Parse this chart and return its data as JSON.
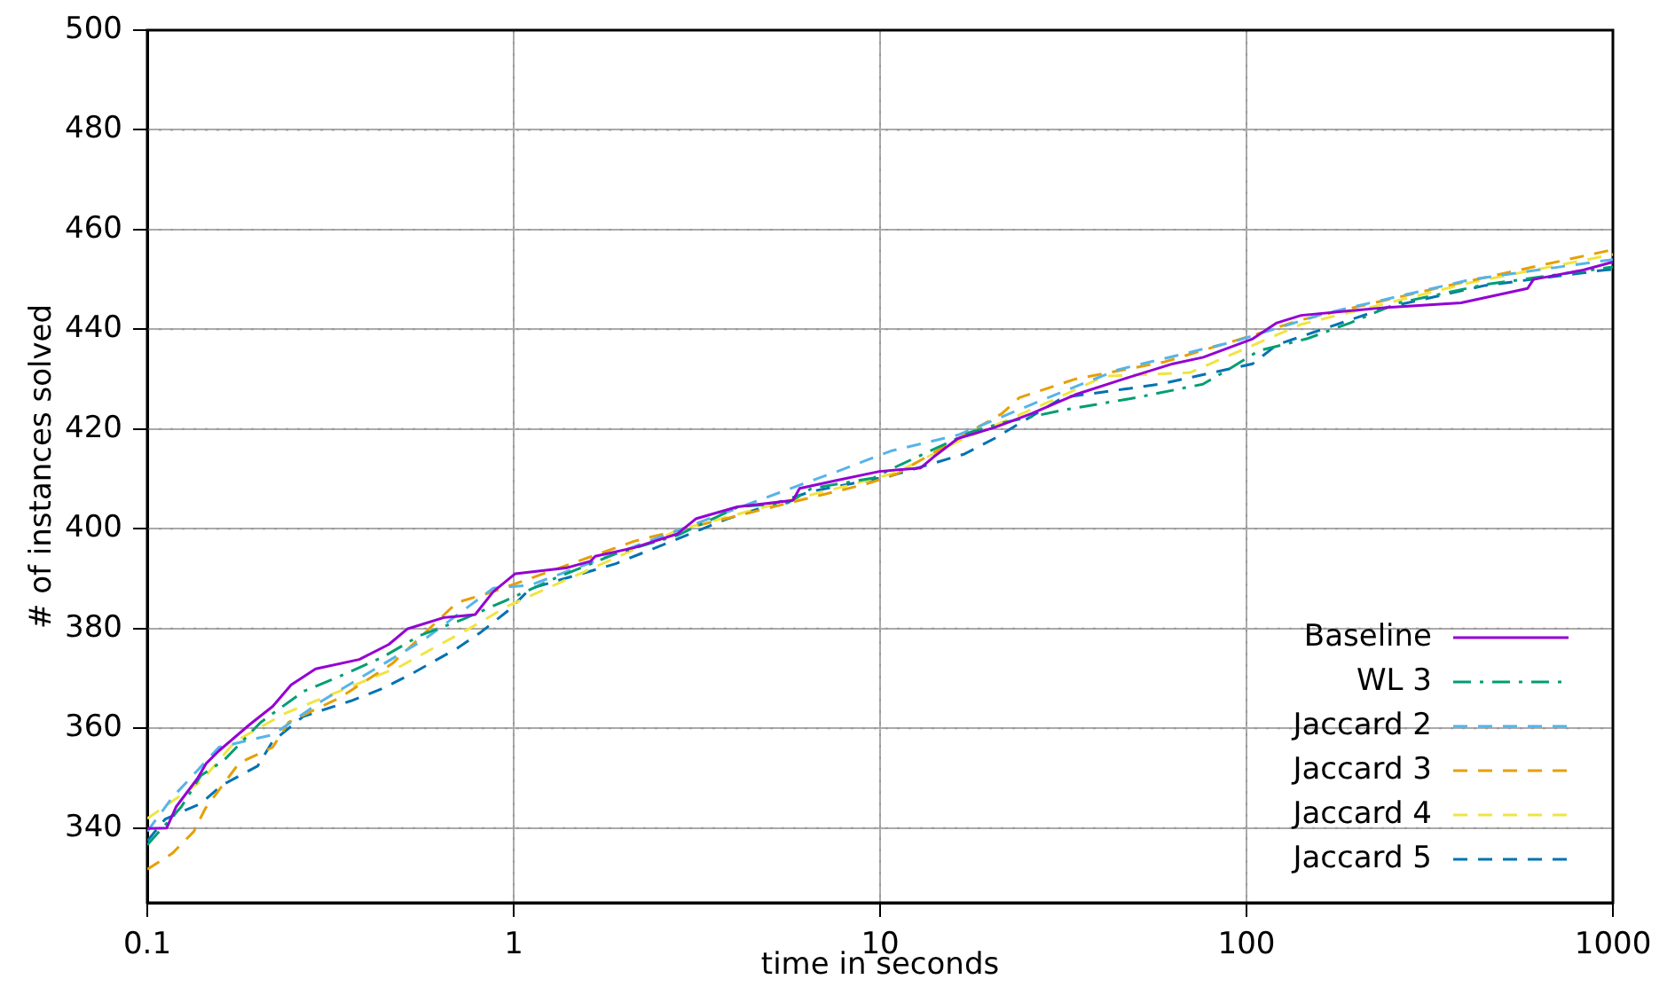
{
  "chart_data": {
    "type": "line",
    "xlabel": "time in seconds",
    "ylabel": "# of instances solved",
    "log": "x",
    "xlim": [
      0.1,
      1000
    ],
    "xticks": [
      0.1,
      1,
      10,
      100,
      1000
    ],
    "ylim": [
      325,
      500
    ],
    "yticks": [
      340,
      360,
      380,
      400,
      420,
      440,
      460,
      480,
      500
    ],
    "grid": true,
    "legend": "bottom right",
    "marker": "none",
    "series": [
      {
        "name": "Baseline",
        "color": "#9400d3",
        "line_style": "solid",
        "x": [
          0.1,
          0.113,
          0.12,
          0.137,
          0.145,
          0.157,
          0.19,
          0.22,
          0.247,
          0.288,
          0.379,
          0.456,
          0.512,
          0.645,
          0.785,
          0.88,
          1.01,
          1.4,
          1.62,
          1.67,
          2.13,
          2.8,
          3.14,
          4.08,
          5.78,
          6.03,
          7.6,
          9.95,
          12.9,
          14,
          16.3,
          20.5,
          25.9,
          34.1,
          46,
          63,
          76.2,
          104,
          121,
          141,
          242,
          385,
          585,
          607,
          830,
          1000
        ],
        "values": [
          339.9,
          340,
          344.3,
          349.9,
          353,
          355.5,
          360.7,
          364.4,
          368.7,
          371.9,
          373.8,
          376.8,
          379.9,
          382.2,
          382.8,
          387.4,
          391,
          392.2,
          393.5,
          394.5,
          396.2,
          399,
          402,
          404.4,
          405.7,
          408.1,
          409.7,
          411.5,
          412.2,
          414.4,
          418.1,
          420.3,
          423.1,
          426.9,
          430,
          433.1,
          434.4,
          438.1,
          441.3,
          442.8,
          444.4,
          445.3,
          448.2,
          450,
          451.9,
          453.5
        ]
      },
      {
        "name": "WL 3",
        "color": "#009e73",
        "line_style": "dashdot",
        "x": [
          0.1,
          0.124,
          0.14,
          0.162,
          0.204,
          0.267,
          0.337,
          0.44,
          0.555,
          0.724,
          0.95,
          1.29,
          1.9,
          2.8,
          4.1,
          5.6,
          6.5,
          9.6,
          11.1,
          17.7,
          21.5,
          31.5,
          50,
          76,
          89,
          108,
          146,
          192,
          260,
          450,
          1000
        ],
        "values": [
          336.6,
          344.3,
          350.5,
          353.6,
          361.2,
          367.4,
          370.5,
          374.3,
          378.6,
          381.8,
          385.6,
          390,
          395,
          398.7,
          404.4,
          405.2,
          408.1,
          410.2,
          412.5,
          419.4,
          421.2,
          423.8,
          426.3,
          429,
          431.9,
          435.7,
          438.1,
          441.3,
          445.3,
          449,
          452.5
        ]
      },
      {
        "name": "Jaccard 2",
        "color": "#56b4e9",
        "line_style": "dashed",
        "x": [
          0.1,
          0.117,
          0.157,
          0.22,
          0.3,
          0.49,
          0.575,
          0.88,
          1.11,
          6,
          7.9,
          10.7,
          16.3,
          31.5,
          44.6,
          92,
          164,
          410,
          890,
          1000
        ],
        "values": [
          339.3,
          346.1,
          356.2,
          358.7,
          365.5,
          374.9,
          378,
          388.1,
          388.7,
          408.7,
          411.9,
          415.6,
          418.8,
          427.5,
          431.9,
          437.5,
          443.2,
          450,
          453.5,
          454
        ]
      },
      {
        "name": "Jaccard 3",
        "color": "#e69f00",
        "line_style": "dashed",
        "x": [
          0.1,
          0.117,
          0.134,
          0.144,
          0.178,
          0.22,
          0.243,
          0.337,
          0.467,
          0.7,
          0.88,
          2.13,
          6.26,
          9.2,
          11.1,
          21.5,
          24,
          34,
          60,
          104,
          141,
          356,
          960,
          1000
        ],
        "values": [
          331.7,
          334.9,
          339.3,
          343.9,
          353,
          356.2,
          361.2,
          366.2,
          373,
          385.2,
          387.4,
          397.5,
          406,
          409,
          411,
          423.1,
          426.3,
          430,
          433.5,
          438.8,
          441.9,
          448.8,
          455.7,
          456
        ]
      },
      {
        "name": "Jaccard 4",
        "color": "#f0e442",
        "line_style": "dashed",
        "x": [
          0.1,
          0.14,
          0.174,
          0.238,
          0.35,
          0.49,
          0.81,
          0.95,
          1.57,
          2.8,
          6,
          8.2,
          11.1,
          16.3,
          28,
          41,
          70,
          141,
          410,
          1000
        ],
        "values": [
          341.9,
          349.3,
          357.4,
          363,
          368,
          372.4,
          381.2,
          384.3,
          391.5,
          399.7,
          406.2,
          408.7,
          411.3,
          417.5,
          425,
          430.6,
          431.3,
          441,
          449.4,
          455
        ]
      },
      {
        "name": "Jaccard 5",
        "color": "#0072b2",
        "line_style": "dashed",
        "x": [
          0.1,
          0.112,
          0.14,
          0.16,
          0.2,
          0.22,
          0.267,
          0.36,
          0.44,
          0.535,
          0.7,
          0.815,
          0.97,
          1.11,
          1.9,
          3.8,
          6.5,
          10.7,
          17,
          20.5,
          31.5,
          58,
          104,
          121,
          242,
          448,
          950,
          1000
        ],
        "values": [
          337.4,
          341.8,
          344.9,
          348.6,
          352.4,
          357.4,
          362.4,
          365.5,
          368,
          371.2,
          376,
          379.3,
          383.7,
          388,
          393,
          401.9,
          407.5,
          410.6,
          415,
          418.1,
          426.3,
          429,
          433.1,
          436.9,
          444.4,
          448.8,
          451.9,
          452
        ]
      }
    ]
  }
}
